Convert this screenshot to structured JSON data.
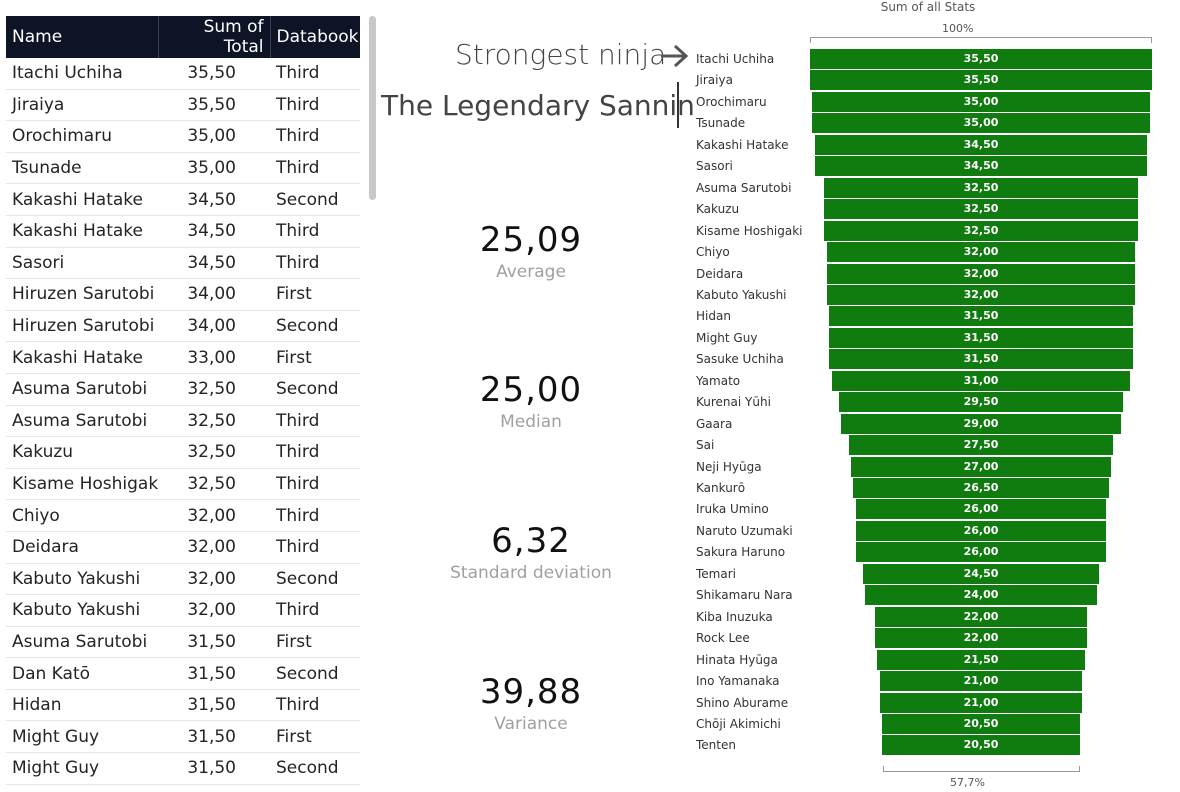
{
  "table": {
    "headers": {
      "name": "Name",
      "total": "Sum of Total",
      "databook": "Databook"
    },
    "rows": [
      {
        "name": "Itachi Uchiha",
        "total": "35,50",
        "databook": "Third"
      },
      {
        "name": "Jiraiya",
        "total": "35,50",
        "databook": "Third"
      },
      {
        "name": "Orochimaru",
        "total": "35,00",
        "databook": "Third"
      },
      {
        "name": "Tsunade",
        "total": "35,00",
        "databook": "Third"
      },
      {
        "name": "Kakashi Hatake",
        "total": "34,50",
        "databook": "Second"
      },
      {
        "name": "Kakashi Hatake",
        "total": "34,50",
        "databook": "Third"
      },
      {
        "name": "Sasori",
        "total": "34,50",
        "databook": "Third"
      },
      {
        "name": "Hiruzen Sarutobi",
        "total": "34,00",
        "databook": "First"
      },
      {
        "name": "Hiruzen Sarutobi",
        "total": "34,00",
        "databook": "Second"
      },
      {
        "name": "Kakashi Hatake",
        "total": "33,00",
        "databook": "First"
      },
      {
        "name": "Asuma Sarutobi",
        "total": "32,50",
        "databook": "Second"
      },
      {
        "name": "Asuma Sarutobi",
        "total": "32,50",
        "databook": "Third"
      },
      {
        "name": "Kakuzu",
        "total": "32,50",
        "databook": "Third"
      },
      {
        "name": "Kisame Hoshigaki",
        "total": "32,50",
        "databook": "Third"
      },
      {
        "name": "Chiyo",
        "total": "32,00",
        "databook": "Third"
      },
      {
        "name": "Deidara",
        "total": "32,00",
        "databook": "Third"
      },
      {
        "name": "Kabuto Yakushi",
        "total": "32,00",
        "databook": "Second"
      },
      {
        "name": "Kabuto Yakushi",
        "total": "32,00",
        "databook": "Third"
      },
      {
        "name": "Asuma Sarutobi",
        "total": "31,50",
        "databook": "First"
      },
      {
        "name": "Dan Katō",
        "total": "31,50",
        "databook": "Second"
      },
      {
        "name": "Hidan",
        "total": "31,50",
        "databook": "Third"
      },
      {
        "name": "Might Guy",
        "total": "31,50",
        "databook": "First"
      },
      {
        "name": "Might Guy",
        "total": "31,50",
        "databook": "Second"
      }
    ]
  },
  "titles": {
    "strongest": "Strongest ninja",
    "sannin": "The Legendary Sannin",
    "arrow_icon": "arrow-right-icon"
  },
  "kpis": [
    {
      "value": "25,09",
      "label": "Average"
    },
    {
      "value": "25,00",
      "label": "Median"
    },
    {
      "value": "6,32",
      "label": "Standard deviation"
    },
    {
      "value": "39,88",
      "label": "Variance"
    }
  ],
  "chart_data": {
    "type": "bar",
    "subtype": "funnel",
    "title": "Sum of all Stats",
    "top_percent_label": "100%",
    "bottom_percent_label": "57,7%",
    "bar_color": "#107c10",
    "categories": [
      "Itachi Uchiha",
      "Jiraiya",
      "Orochimaru",
      "Tsunade",
      "Kakashi Hatake",
      "Sasori",
      "Asuma Sarutobi",
      "Kakuzu",
      "Kisame Hoshigaki",
      "Chiyo",
      "Deidara",
      "Kabuto Yakushi",
      "Hidan",
      "Might Guy",
      "Sasuke Uchiha",
      "Yamato",
      "Kurenai Yūhi",
      "Gaara",
      "Sai",
      "Neji Hyūga",
      "Kankurō",
      "Iruka Umino",
      "Naruto Uzumaki",
      "Sakura Haruno",
      "Temari",
      "Shikamaru Nara",
      "Kiba Inuzuka",
      "Rock Lee",
      "Hinata Hyūga",
      "Ino Yamanaka",
      "Shino Aburame",
      "Chōji Akimichi",
      "Tenten"
    ],
    "values": [
      35.5,
      35.5,
      35.0,
      35.0,
      34.5,
      34.5,
      32.5,
      32.5,
      32.5,
      32.0,
      32.0,
      32.0,
      31.5,
      31.5,
      31.5,
      31.0,
      29.5,
      29.0,
      27.5,
      27.0,
      26.5,
      26.0,
      26.0,
      26.0,
      24.5,
      24.0,
      22.0,
      22.0,
      21.5,
      21.0,
      21.0,
      20.5,
      20.5
    ],
    "value_labels": [
      "35,50",
      "35,50",
      "35,00",
      "35,00",
      "34,50",
      "34,50",
      "32,50",
      "32,50",
      "32,50",
      "32,00",
      "32,00",
      "32,00",
      "31,50",
      "31,50",
      "31,50",
      "31,00",
      "29,50",
      "29,00",
      "27,50",
      "27,00",
      "26,50",
      "26,00",
      "26,00",
      "26,00",
      "24,50",
      "24,00",
      "22,00",
      "22,00",
      "21,50",
      "21,00",
      "21,00",
      "20,50",
      "20,50"
    ]
  }
}
